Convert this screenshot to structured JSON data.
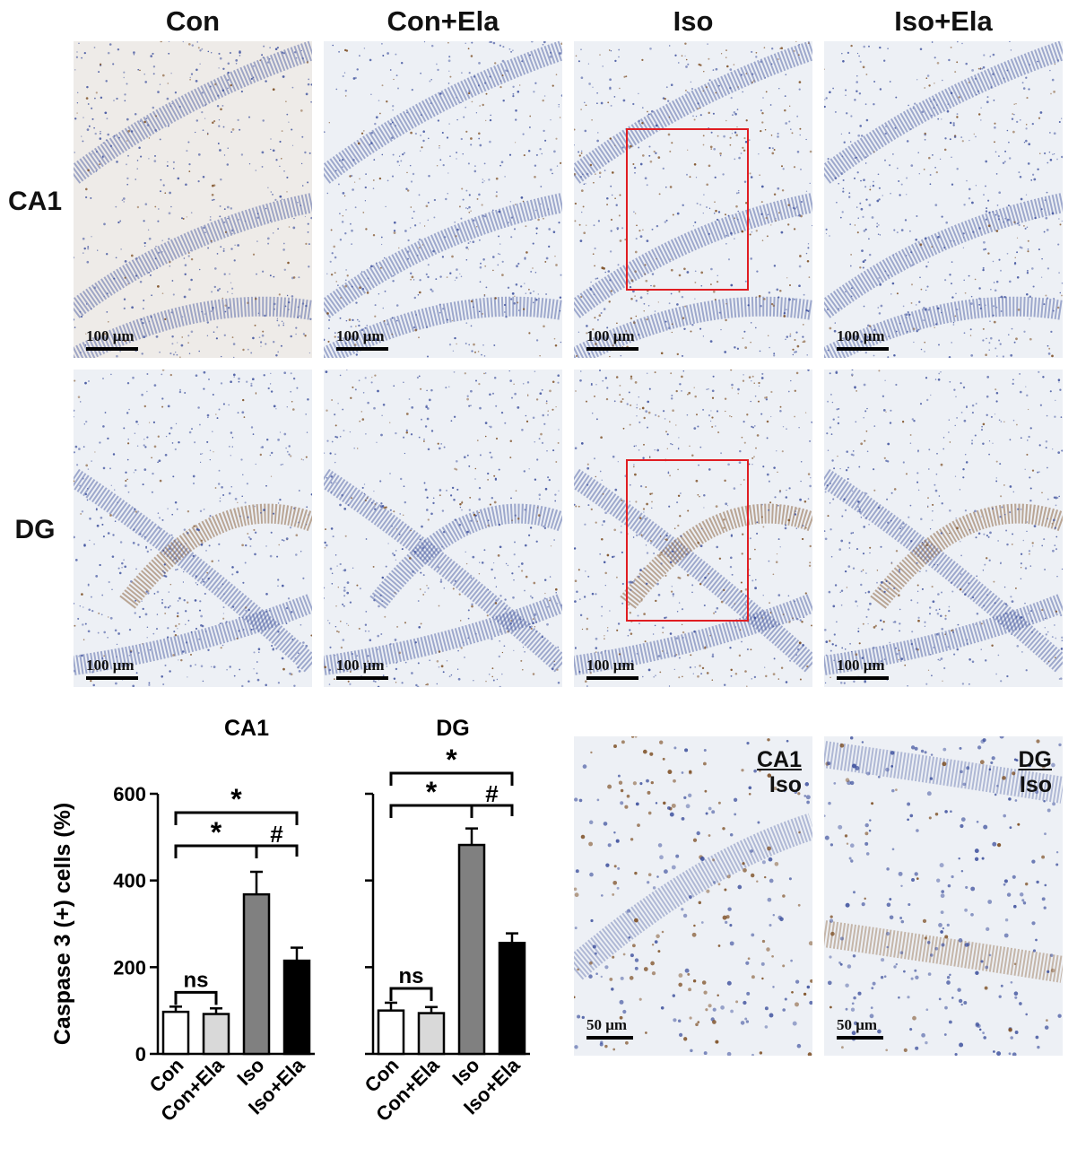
{
  "figure": {
    "columns": [
      "Con",
      "Con+Ela",
      "Iso",
      "Iso+Ela"
    ],
    "rows": [
      "CA1",
      "DG"
    ],
    "scale_label": "100 μm",
    "inset_scale_label": "50 μm",
    "insets": [
      {
        "region": "CA1",
        "group": "Iso"
      },
      {
        "region": "DG",
        "group": "Iso"
      }
    ],
    "colors": {
      "stain_blue": "#3c4f9c",
      "stain_brown": "#7a4a1e",
      "roi_red": "#e01d22"
    }
  },
  "chart_data": [
    {
      "type": "bar",
      "title": "CA1",
      "ylabel": "Caspase 3 (+) cells (%)",
      "categories": [
        "Con",
        "Con+Ela",
        "Iso",
        "Iso+Ela"
      ],
      "values": [
        97,
        92,
        368,
        215
      ],
      "errors": [
        12,
        13,
        52,
        30
      ],
      "ylim": [
        0,
        600
      ],
      "yticks": [
        0,
        200,
        400,
        600
      ],
      "bar_colors": [
        "#ffffff",
        "#d9d9d9",
        "#808080",
        "#000000"
      ],
      "annotations": [
        {
          "text": "ns",
          "from": "Con",
          "to": "Con+Ela"
        },
        {
          "text": "*",
          "from": "Con",
          "to": "Iso"
        },
        {
          "text": "#",
          "from": "Iso",
          "to": "Iso+Ela"
        },
        {
          "text": "*",
          "from": "Con",
          "to": "Iso+Ela"
        }
      ]
    },
    {
      "type": "bar",
      "title": "DG",
      "ylabel": "",
      "categories": [
        "Con",
        "Con+Ela",
        "Iso",
        "Iso+Ela"
      ],
      "values": [
        100,
        94,
        482,
        256
      ],
      "errors": [
        18,
        14,
        38,
        22
      ],
      "ylim": [
        0,
        600
      ],
      "yticks": [
        0,
        200,
        400,
        600
      ],
      "bar_colors": [
        "#ffffff",
        "#d9d9d9",
        "#808080",
        "#000000"
      ],
      "annotations": [
        {
          "text": "ns",
          "from": "Con",
          "to": "Con+Ela"
        },
        {
          "text": "*",
          "from": "Con",
          "to": "Iso"
        },
        {
          "text": "#",
          "from": "Iso",
          "to": "Iso+Ela"
        },
        {
          "text": "*",
          "from": "Con",
          "to": "Iso+Ela"
        }
      ]
    }
  ]
}
